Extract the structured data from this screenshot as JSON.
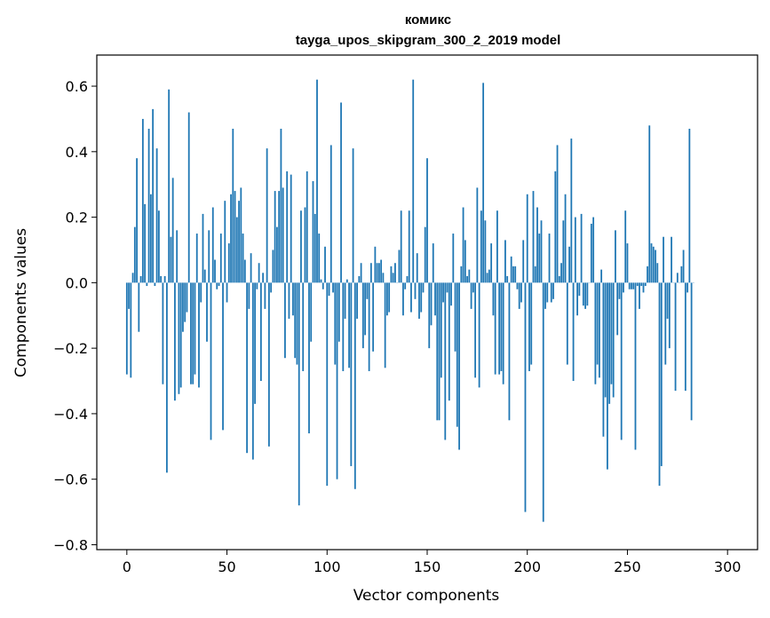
{
  "chart_data": {
    "type": "bar",
    "title_line1": "комикс",
    "title_line2": "tayga_upos_skipgram_300_2_2019 model",
    "xlabel": "Vector components",
    "ylabel": "Components values",
    "xlim": [
      -15,
      315
    ],
    "ylim": [
      -0.815,
      0.695
    ],
    "xticks": [
      0,
      50,
      100,
      150,
      200,
      250,
      300
    ],
    "xtick_labels": [
      "0",
      "50",
      "100",
      "150",
      "200",
      "250",
      "300"
    ],
    "yticks": [
      -0.8,
      -0.6,
      -0.4,
      -0.2,
      0.0,
      0.2,
      0.4,
      0.6
    ],
    "ytick_labels": [
      "−0.8",
      "−0.6",
      "−0.4",
      "−0.2",
      "0.0",
      "0.2",
      "0.4",
      "0.6"
    ],
    "bar_color": "#1f77b4",
    "x_start": 0,
    "values": [
      -0.28,
      -0.08,
      -0.29,
      0.03,
      0.17,
      0.38,
      -0.15,
      0.02,
      0.5,
      0.24,
      -0.01,
      0.47,
      0.27,
      0.53,
      -0.01,
      0.41,
      0.22,
      0.02,
      -0.31,
      0.02,
      -0.58,
      0.59,
      0.14,
      0.32,
      -0.36,
      0.16,
      -0.34,
      -0.32,
      -0.15,
      -0.12,
      -0.09,
      0.52,
      -0.31,
      -0.31,
      -0.28,
      0.15,
      -0.32,
      -0.06,
      0.21,
      0.04,
      -0.18,
      0.16,
      -0.48,
      0.23,
      0.07,
      -0.02,
      -0.01,
      0.15,
      -0.45,
      0.25,
      -0.06,
      0.12,
      0.27,
      0.47,
      0.28,
      0.2,
      0.25,
      0.29,
      0.15,
      0.07,
      -0.52,
      -0.08,
      0.09,
      -0.54,
      -0.37,
      -0.02,
      0.06,
      -0.3,
      0.03,
      -0.08,
      0.41,
      -0.5,
      -0.03,
      0.1,
      0.28,
      0.17,
      0.28,
      0.47,
      0.29,
      -0.23,
      0.34,
      -0.11,
      0.33,
      -0.1,
      -0.23,
      -0.25,
      -0.68,
      0.22,
      -0.27,
      0.23,
      0.34,
      -0.46,
      -0.18,
      0.31,
      0.21,
      0.62,
      0.15,
      0.01,
      -0.02,
      0.11,
      -0.62,
      -0.04,
      0.42,
      -0.03,
      -0.25,
      -0.6,
      -0.18,
      0.55,
      -0.27,
      -0.11,
      0.01,
      -0.26,
      -0.56,
      0.41,
      -0.63,
      -0.11,
      0.02,
      0.06,
      -0.2,
      -0.16,
      -0.05,
      -0.27,
      0.06,
      -0.21,
      0.11,
      0.06,
      0.06,
      0.07,
      0.03,
      -0.26,
      -0.1,
      -0.09,
      0.05,
      0.03,
      0.06,
      0.0,
      0.1,
      0.22,
      -0.1,
      -0.02,
      0.02,
      0.22,
      -0.09,
      0.62,
      -0.05,
      0.09,
      -0.11,
      -0.09,
      -0.03,
      0.17,
      0.38,
      -0.2,
      -0.13,
      0.12,
      -0.1,
      -0.42,
      -0.42,
      -0.29,
      -0.06,
      -0.48,
      -0.03,
      -0.36,
      -0.07,
      0.15,
      -0.21,
      -0.44,
      -0.51,
      0.05,
      0.23,
      0.13,
      0.02,
      0.04,
      -0.08,
      -0.03,
      -0.29,
      0.29,
      -0.32,
      0.22,
      0.61,
      0.19,
      0.03,
      0.04,
      0.12,
      -0.1,
      -0.28,
      0.22,
      -0.28,
      -0.27,
      -0.31,
      0.13,
      0.02,
      -0.42,
      0.08,
      0.05,
      0.05,
      -0.02,
      -0.08,
      -0.06,
      0.13,
      -0.7,
      0.27,
      -0.27,
      -0.25,
      0.28,
      0.05,
      0.23,
      0.15,
      0.19,
      -0.73,
      -0.08,
      -0.06,
      0.15,
      -0.06,
      -0.05,
      0.34,
      0.42,
      0.02,
      0.06,
      0.19,
      0.27,
      -0.25,
      0.11,
      0.44,
      -0.3,
      0.2,
      -0.1,
      -0.04,
      0.21,
      -0.07,
      -0.08,
      -0.07,
      0.0,
      0.18,
      0.2,
      -0.31,
      -0.25,
      -0.29,
      0.04,
      -0.47,
      -0.35,
      -0.57,
      -0.37,
      -0.31,
      -0.35,
      0.16,
      -0.16,
      -0.05,
      -0.48,
      -0.03,
      0.22,
      0.12,
      -0.02,
      -0.02,
      -0.02,
      -0.51,
      -0.01,
      -0.08,
      -0.01,
      -0.03,
      -0.01,
      0.05,
      0.48,
      0.12,
      0.11,
      0.1,
      0.06,
      -0.62,
      -0.56,
      0.14,
      -0.25,
      -0.11,
      -0.2,
      0.14,
      0.0,
      -0.33,
      0.03,
      0.0,
      0.05,
      0.1,
      -0.33,
      -0.03,
      0.47,
      -0.42,
      0.0
    ]
  }
}
